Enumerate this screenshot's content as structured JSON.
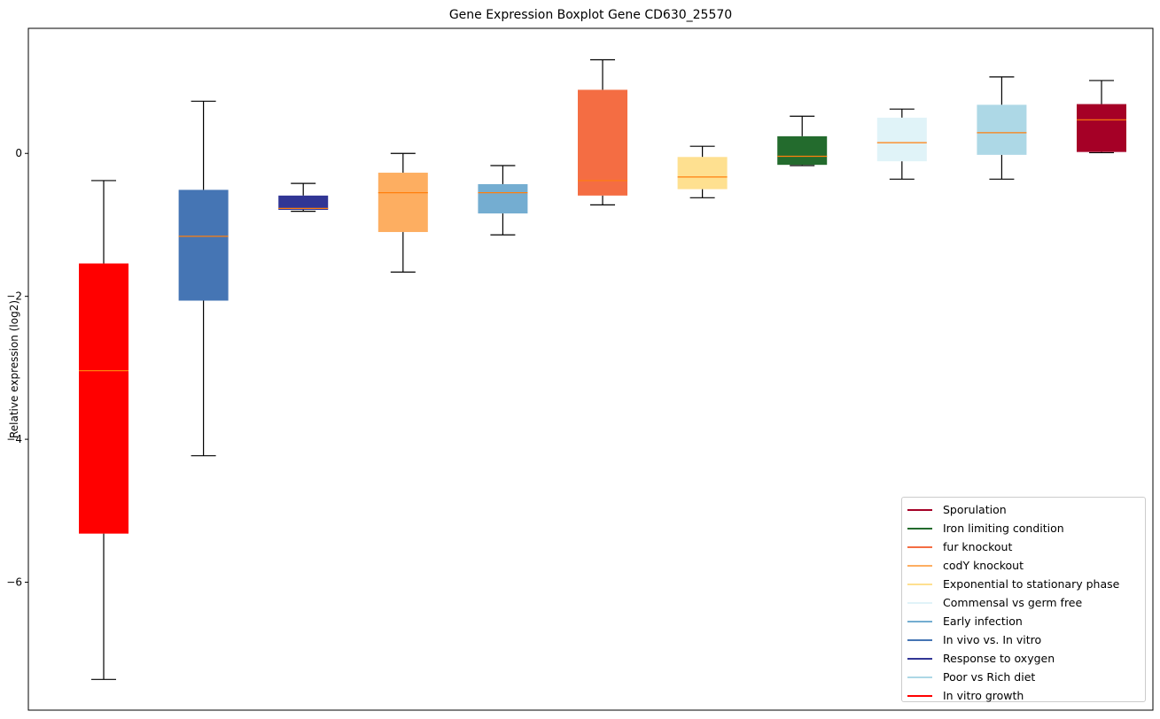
{
  "chart_data": {
    "type": "boxplot",
    "title": "Gene Expression Boxplot Gene CD630_25570",
    "xlabel": "",
    "ylabel": "Relative expression (log2)",
    "ylim": [
      -7.79,
      1.75
    ],
    "yticks": [
      0,
      -2,
      -4,
      -6
    ],
    "ytick_labels": [
      "0",
      "−2",
      "−4",
      "−6"
    ],
    "grid": false,
    "legend_position": "bottom-right",
    "median_color": "#ff7f0e",
    "boxes": [
      {
        "label": "In vitro growth",
        "color": "#ff0000",
        "whisker_high": -0.38,
        "q3": -1.54,
        "median": -3.04,
        "q1": -5.32,
        "whisker_low": -7.36
      },
      {
        "label": "In vivo vs. In vitro",
        "color": "#4575b4",
        "whisker_high": 0.73,
        "q3": -0.51,
        "median": -1.16,
        "q1": -2.06,
        "whisker_low": -4.23
      },
      {
        "label": "Response to oxygen",
        "color": "#313695",
        "whisker_high": -0.42,
        "q3": -0.59,
        "median": -0.77,
        "q1": -0.79,
        "whisker_low": -0.81
      },
      {
        "label": "codY knockout",
        "color": "#fdae61",
        "whisker_high": 0.0,
        "q3": -0.27,
        "median": -0.55,
        "q1": -1.1,
        "whisker_low": -1.66
      },
      {
        "label": "Early infection",
        "color": "#74add1",
        "whisker_high": -0.17,
        "q3": -0.43,
        "median": -0.55,
        "q1": -0.84,
        "whisker_low": -1.14
      },
      {
        "label": "fur knockout",
        "color": "#f46d43",
        "whisker_high": 1.31,
        "q3": 0.89,
        "median": -0.38,
        "q1": -0.59,
        "whisker_low": -0.72
      },
      {
        "label": "Exponential to stationary phase",
        "color": "#fee090",
        "whisker_high": 0.1,
        "q3": -0.05,
        "median": -0.33,
        "q1": -0.5,
        "whisker_low": -0.62
      },
      {
        "label": "Iron limiting condition",
        "color": "#236b2d",
        "whisker_high": 0.52,
        "q3": 0.24,
        "median": -0.04,
        "q1": -0.16,
        "whisker_low": -0.17
      },
      {
        "label": "Commensal vs germ free",
        "color": "#e0f3f8",
        "whisker_high": 0.62,
        "q3": 0.5,
        "median": 0.15,
        "q1": -0.11,
        "whisker_low": -0.36
      },
      {
        "label": "Poor vs Rich diet",
        "color": "#add8e6",
        "whisker_high": 1.07,
        "q3": 0.68,
        "median": 0.29,
        "q1": -0.02,
        "whisker_low": -0.36
      },
      {
        "label": "Sporulation",
        "color": "#a50026",
        "whisker_high": 1.02,
        "q3": 0.69,
        "median": 0.47,
        "q1": 0.02,
        "whisker_low": 0.01
      }
    ],
    "legend": [
      {
        "label": "Sporulation",
        "color": "#a50026"
      },
      {
        "label": "Iron limiting condition",
        "color": "#236b2d"
      },
      {
        "label": "fur knockout",
        "color": "#f46d43"
      },
      {
        "label": "codY knockout",
        "color": "#fdae61"
      },
      {
        "label": "Exponential to stationary phase",
        "color": "#fee090"
      },
      {
        "label": "Commensal vs germ free",
        "color": "#e0f3f8"
      },
      {
        "label": "Early infection",
        "color": "#74add1"
      },
      {
        "label": "In vivo vs. In vitro",
        "color": "#4575b4"
      },
      {
        "label": "Response to oxygen",
        "color": "#313695"
      },
      {
        "label": "Poor vs Rich diet",
        "color": "#add8e6"
      },
      {
        "label": "In vitro growth",
        "color": "#ff0000"
      }
    ]
  }
}
